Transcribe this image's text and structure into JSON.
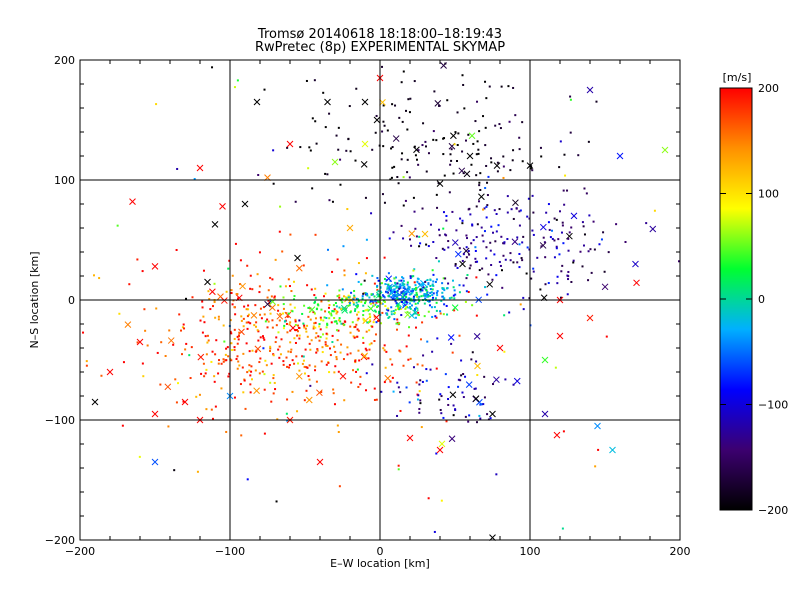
{
  "chart_data": {
    "type": "scatter",
    "title": "Tromsø 20140618 18:18:00–18:19:43",
    "subtitle": "RwPretec (8p) EXPERIMENTAL SKYMAP",
    "xlabel": "E–W location [km]",
    "ylabel": "N–S location [km]",
    "xlim": [
      -200,
      200
    ],
    "ylim": [
      -200,
      200
    ],
    "x_ticks": [
      "−200",
      "−100",
      "0",
      "100",
      "200"
    ],
    "y_ticks": [
      "200",
      "100",
      "0",
      "−100",
      "−200"
    ],
    "grid": true,
    "colorbar": {
      "label": "[m/s]",
      "range": [
        -200,
        200
      ],
      "ticks": [
        "200",
        "100",
        "0",
        "−100",
        "−200"
      ],
      "colormap": "rainbow-black",
      "colors": [
        "#000000",
        "#3c0070",
        "#0000ff",
        "#00b0ff",
        "#00ff30",
        "#ffff00",
        "#ff9000",
        "#ff0000"
      ]
    },
    "markers": {
      "dot": "small point",
      "cross": "x"
    },
    "clusters": [
      {
        "name": "southwest-red",
        "x": -65,
        "y": -30,
        "sx": 48,
        "sy": 30,
        "count": 520,
        "v": 175,
        "vs": 40
      },
      {
        "name": "center-cyan",
        "x": 18,
        "y": 5,
        "sx": 16,
        "sy": 8,
        "count": 330,
        "v": -30,
        "vs": 35
      },
      {
        "name": "center-green",
        "x": -20,
        "y": -8,
        "sx": 22,
        "sy": 9,
        "count": 170,
        "v": 45,
        "vs": 35
      },
      {
        "name": "east-blue",
        "x": 90,
        "y": 48,
        "sx": 35,
        "sy": 22,
        "count": 230,
        "v": -135,
        "vs": 35
      },
      {
        "name": "north-black",
        "x": 40,
        "y": 130,
        "sx": 45,
        "sy": 28,
        "count": 180,
        "v": -190,
        "vs": 20
      },
      {
        "name": "southeast-blue",
        "x": 45,
        "y": -75,
        "sx": 22,
        "sy": 18,
        "count": 80,
        "v": -125,
        "vs": 40
      },
      {
        "name": "background",
        "x": 0,
        "y": 0,
        "sx": 95,
        "sy": 95,
        "count": 120,
        "v": 40,
        "vs": 150
      }
    ],
    "cross_points": [
      [
        -82,
        165,
        -200
      ],
      [
        -35,
        165,
        -200
      ],
      [
        -10,
        165,
        -200
      ],
      [
        -2,
        150,
        -200
      ],
      [
        78,
        112,
        -200
      ],
      [
        100,
        112,
        -200
      ],
      [
        40,
        97,
        -200
      ],
      [
        -110,
        63,
        -200
      ],
      [
        -115,
        15,
        -200
      ],
      [
        -55,
        35,
        -200
      ],
      [
        -90,
        80,
        -200
      ],
      [
        55,
        30,
        -200
      ],
      [
        -165,
        82,
        200
      ],
      [
        -150,
        28,
        200
      ],
      [
        -75,
        102,
        150
      ],
      [
        -120,
        110,
        200
      ],
      [
        0,
        185,
        200
      ],
      [
        140,
        175,
        -120
      ],
      [
        160,
        120,
        -80
      ],
      [
        190,
        125,
        60
      ],
      [
        120,
        0,
        200
      ],
      [
        120,
        -30,
        200
      ],
      [
        110,
        -50,
        40
      ],
      [
        140,
        -15,
        190
      ],
      [
        -105,
        78,
        200
      ],
      [
        -160,
        -35,
        200
      ],
      [
        -180,
        -60,
        200
      ],
      [
        -190,
        -85,
        -200
      ],
      [
        -150,
        -95,
        200
      ],
      [
        -130,
        -85,
        200
      ],
      [
        -150,
        -135,
        -60
      ],
      [
        -120,
        -100,
        200
      ],
      [
        -100,
        -80,
        -40
      ],
      [
        -60,
        -100,
        190
      ],
      [
        -40,
        -135,
        200
      ],
      [
        40,
        -125,
        200
      ],
      [
        20,
        -115,
        200
      ],
      [
        75,
        -95,
        -200
      ],
      [
        110,
        -95,
        -120
      ],
      [
        145,
        -105,
        -40
      ],
      [
        155,
        -125,
        -20
      ],
      [
        75,
        -198,
        -200
      ],
      [
        -60,
        130,
        200
      ],
      [
        -30,
        115,
        60
      ],
      [
        -10,
        130,
        80
      ],
      [
        60,
        120,
        -200
      ],
      [
        30,
        55,
        120
      ],
      [
        -20,
        60,
        130
      ],
      [
        80,
        -40,
        200
      ],
      [
        65,
        -55,
        120
      ]
    ]
  }
}
